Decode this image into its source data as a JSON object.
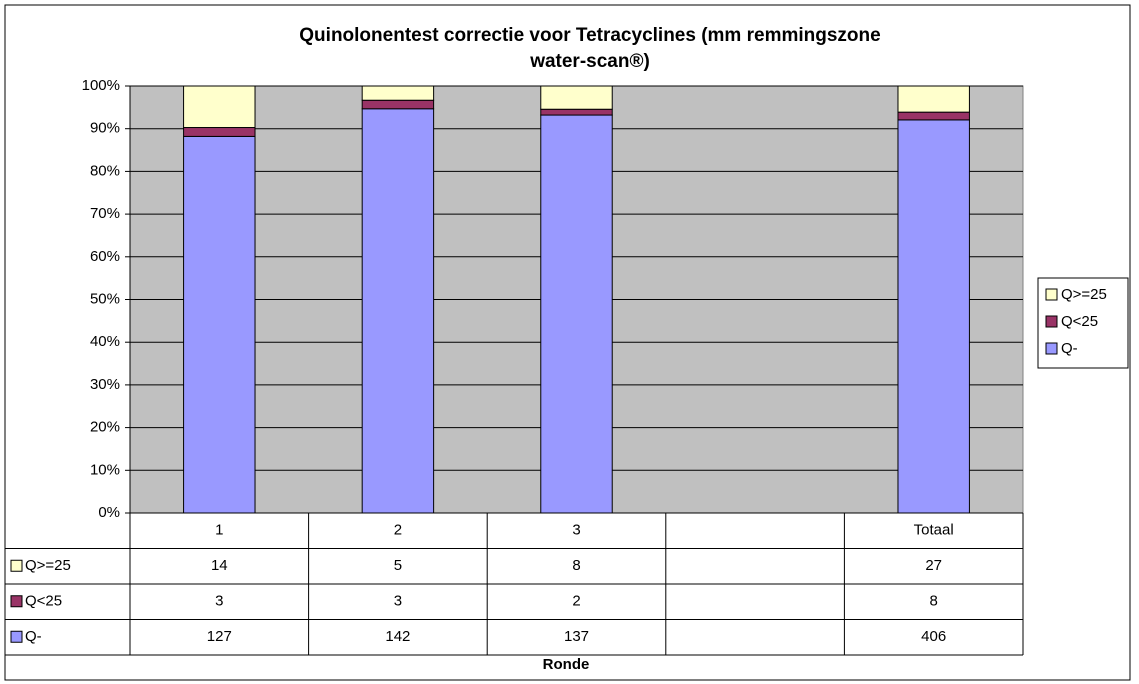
{
  "chart_data": {
    "type": "bar",
    "stacking": "percent",
    "title": [
      "Quinolonentest correctie voor Tetracyclines (mm remmingszone",
      "water-scan®)"
    ],
    "x_label": "Ronde",
    "categories": [
      "1",
      "2",
      "3",
      null,
      "Totaal"
    ],
    "series": [
      {
        "name": "Q-",
        "color": "#9999ff",
        "values": [
          127,
          142,
          137,
          null,
          406
        ]
      },
      {
        "name": "Q<25",
        "color": "#993366",
        "values": [
          3,
          3,
          2,
          null,
          8
        ]
      },
      {
        "name": "Q>=25",
        "color": "#ffffcc",
        "values": [
          14,
          5,
          8,
          null,
          27
        ]
      }
    ],
    "ylim": [
      0,
      100
    ],
    "yticks": [
      {
        "value": 0,
        "label": "0%"
      },
      {
        "value": 10,
        "label": "10%"
      },
      {
        "value": 20,
        "label": "20%"
      },
      {
        "value": 30,
        "label": "30%"
      },
      {
        "value": 40,
        "label": "40%"
      },
      {
        "value": 50,
        "label": "50%"
      },
      {
        "value": 60,
        "label": "60%"
      },
      {
        "value": 70,
        "label": "70%"
      },
      {
        "value": 80,
        "label": "80%"
      },
      {
        "value": 90,
        "label": "90%"
      },
      {
        "value": 100,
        "label": "100%"
      }
    ],
    "grid": true,
    "plot_background": "#c0c0c0",
    "legend": "right",
    "data_table": true
  }
}
